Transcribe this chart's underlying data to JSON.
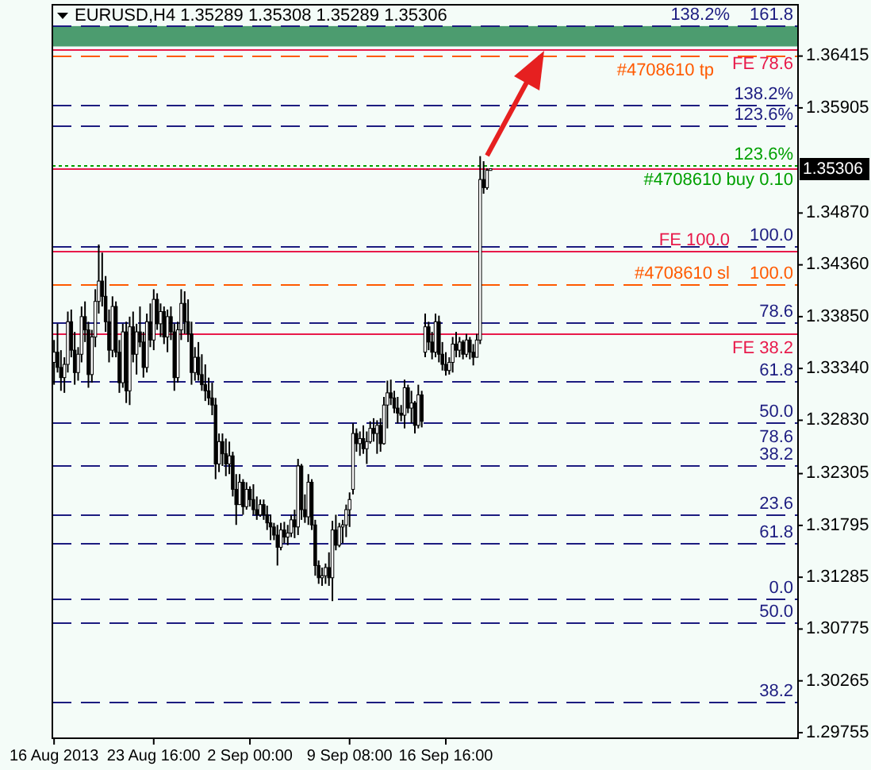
{
  "chart_data": {
    "type": "candlestick",
    "title": "EURUSD,H4  1.35289 1.35308 1.35289 1.35306",
    "categories": [
      "16 Aug 2013",
      null,
      null,
      null,
      null,
      null,
      null,
      null,
      null,
      null,
      null,
      null,
      null,
      null,
      null,
      null,
      null,
      null,
      null,
      null,
      null,
      null,
      null,
      null,
      null,
      null,
      null,
      null,
      null,
      "23 Aug 16:00",
      null,
      null,
      null,
      null,
      null,
      null,
      null,
      null,
      null,
      null,
      null,
      null,
      null,
      null,
      null,
      null,
      null,
      null,
      null,
      null,
      null,
      null,
      null,
      null,
      null,
      null,
      null,
      "2 Sep 00:00",
      null,
      null,
      null,
      null,
      null,
      null,
      null,
      null,
      null,
      null,
      null,
      null,
      null,
      null,
      null,
      null,
      null,
      null,
      null,
      null,
      null,
      null,
      null,
      null,
      null,
      null,
      null,
      null,
      "9 Sep 08:00",
      null,
      null,
      null,
      null,
      null,
      null,
      null,
      null,
      null,
      null,
      null,
      null,
      null,
      null,
      null,
      null,
      null,
      null,
      null,
      null,
      null,
      null,
      null,
      null,
      null,
      null,
      null,
      "16 Sep 16:00",
      null,
      null,
      null,
      null,
      null,
      null,
      null,
      null,
      null,
      null,
      null,
      null,
      null,
      null,
      null,
      null,
      null,
      null,
      null,
      null,
      null,
      null,
      null,
      null,
      null,
      null,
      null,
      null,
      null,
      null,
      null,
      null,
      null,
      null,
      null,
      null,
      null,
      null,
      null,
      null,
      null,
      null,
      null,
      null,
      null,
      null,
      null,
      null,
      null,
      null,
      null,
      null,
      null,
      null,
      null,
      null,
      null,
      null,
      null,
      null,
      null,
      null,
      null,
      null,
      null,
      null,
      null,
      null,
      null,
      null,
      null,
      null,
      null,
      null,
      null,
      null,
      null,
      null,
      null,
      null,
      null,
      null,
      null,
      null,
      null,
      null,
      null,
      null,
      null,
      null,
      null,
      null,
      null,
      null,
      null,
      null,
      null,
      null,
      null,
      null,
      null,
      null
    ],
    "ohlc": [
      [
        1.334,
        1.3362,
        1.3318,
        1.335
      ],
      [
        1.335,
        1.3378,
        1.333,
        1.3335
      ],
      [
        1.3335,
        1.3352,
        1.3312,
        1.3325
      ],
      [
        1.3325,
        1.3345,
        1.331,
        1.3338
      ],
      [
        1.3338,
        1.339,
        1.333,
        1.338
      ],
      [
        1.338,
        1.3392,
        1.3345,
        1.3352
      ],
      [
        1.3352,
        1.337,
        1.3318,
        1.333
      ],
      [
        1.333,
        1.3355,
        1.3322,
        1.3348
      ],
      [
        1.3348,
        1.3395,
        1.334,
        1.3385
      ],
      [
        1.3385,
        1.34,
        1.336,
        1.3372
      ],
      [
        1.3372,
        1.338,
        1.3315,
        1.3328
      ],
      [
        1.3328,
        1.3372,
        1.332,
        1.3365
      ],
      [
        1.3365,
        1.3412,
        1.3355,
        1.34
      ],
      [
        1.34,
        1.3456,
        1.3388,
        1.342
      ],
      [
        1.342,
        1.3448,
        1.3395,
        1.3405
      ],
      [
        1.3405,
        1.3425,
        1.337,
        1.338
      ],
      [
        1.338,
        1.3392,
        1.334,
        1.3352
      ],
      [
        1.3352,
        1.3405,
        1.3345,
        1.3395
      ],
      [
        1.3395,
        1.34,
        1.3345,
        1.335
      ],
      [
        1.335,
        1.3362,
        1.331,
        1.332
      ],
      [
        1.332,
        1.3378,
        1.3315,
        1.337
      ],
      [
        1.337,
        1.338,
        1.33,
        1.3312
      ],
      [
        1.3312,
        1.3385,
        1.3298,
        1.3375
      ],
      [
        1.3375,
        1.339,
        1.334,
        1.3348
      ],
      [
        1.3348,
        1.3378,
        1.3328,
        1.337
      ],
      [
        1.337,
        1.3395,
        1.3355,
        1.336
      ],
      [
        1.336,
        1.337,
        1.3325,
        1.3335
      ],
      [
        1.3335,
        1.3388,
        1.333,
        1.338
      ],
      [
        1.338,
        1.3398,
        1.3355,
        1.3362
      ],
      [
        1.3362,
        1.3412,
        1.3352,
        1.3402
      ],
      [
        1.3402,
        1.3408,
        1.3372,
        1.3378
      ],
      [
        1.3378,
        1.3398,
        1.3365,
        1.339
      ],
      [
        1.339,
        1.3395,
        1.3358,
        1.3365
      ],
      [
        1.3365,
        1.3392,
        1.335,
        1.3385
      ],
      [
        1.3385,
        1.3395,
        1.3362,
        1.337
      ],
      [
        1.337,
        1.3378,
        1.3312,
        1.3325
      ],
      [
        1.3325,
        1.338,
        1.332,
        1.3372
      ],
      [
        1.3372,
        1.3412,
        1.3362,
        1.3398
      ],
      [
        1.3398,
        1.341,
        1.3368,
        1.338
      ],
      [
        1.338,
        1.3402,
        1.336,
        1.3368
      ],
      [
        1.3368,
        1.338,
        1.3318,
        1.333
      ],
      [
        1.333,
        1.3355,
        1.3322,
        1.3345
      ],
      [
        1.3345,
        1.336,
        1.3322,
        1.3328
      ],
      [
        1.3328,
        1.3348,
        1.3312,
        1.3318
      ],
      [
        1.3318,
        1.3338,
        1.3302,
        1.3312
      ],
      [
        1.3312,
        1.3325,
        1.3298,
        1.3305
      ],
      [
        1.3305,
        1.332,
        1.3288,
        1.3298
      ],
      [
        1.3298,
        1.3305,
        1.3225,
        1.324
      ],
      [
        1.324,
        1.327,
        1.3232,
        1.3262
      ],
      [
        1.3262,
        1.327,
        1.3238,
        1.325
      ],
      [
        1.325,
        1.3265,
        1.3228,
        1.324
      ],
      [
        1.324,
        1.3262,
        1.323,
        1.3248
      ],
      [
        1.3248,
        1.3252,
        1.3208,
        1.3215
      ],
      [
        1.3215,
        1.323,
        1.318,
        1.32
      ],
      [
        1.32,
        1.323,
        1.32,
        1.3222
      ],
      [
        1.3222,
        1.3225,
        1.319,
        1.3198
      ],
      [
        1.3198,
        1.3222,
        1.3195,
        1.3215
      ],
      [
        1.3215,
        1.3218,
        1.3198,
        1.3205
      ],
      [
        1.3205,
        1.322,
        1.319,
        1.3195
      ],
      [
        1.3195,
        1.3208,
        1.3185,
        1.319
      ],
      [
        1.319,
        1.3205,
        1.3188,
        1.32
      ],
      [
        1.32,
        1.3205,
        1.3185,
        1.319
      ],
      [
        1.319,
        1.3199,
        1.3175,
        1.3182
      ],
      [
        1.3182,
        1.319,
        1.3165,
        1.3178
      ],
      [
        1.3178,
        1.3182,
        1.3165,
        1.317
      ],
      [
        1.317,
        1.318,
        1.314,
        1.3158
      ],
      [
        1.3158,
        1.3182,
        1.3155,
        1.3175
      ],
      [
        1.3175,
        1.3183,
        1.3162,
        1.3168
      ],
      [
        1.3168,
        1.318,
        1.316,
        1.3172
      ],
      [
        1.3172,
        1.319,
        1.3168,
        1.3185
      ],
      [
        1.3185,
        1.3195,
        1.3167,
        1.3178
      ],
      [
        1.3178,
        1.3245,
        1.317,
        1.3238
      ],
      [
        1.3238,
        1.324,
        1.3185,
        1.3195
      ],
      [
        1.3195,
        1.321,
        1.3182,
        1.3188
      ],
      [
        1.3188,
        1.323,
        1.318,
        1.3222
      ],
      [
        1.3222,
        1.3225,
        1.3175,
        1.318
      ],
      [
        1.318,
        1.3185,
        1.313,
        1.314
      ],
      [
        1.314,
        1.3145,
        1.3122,
        1.3128
      ],
      [
        1.3128,
        1.3138,
        1.312,
        1.313
      ],
      [
        1.313,
        1.3142,
        1.3122,
        1.3138
      ],
      [
        1.3138,
        1.3153,
        1.312,
        1.3128
      ],
      [
        1.3128,
        1.3184,
        1.3105,
        1.3175
      ],
      [
        1.3175,
        1.319,
        1.3155,
        1.316
      ],
      [
        1.316,
        1.3182,
        1.3158,
        1.3178
      ],
      [
        1.3178,
        1.3185,
        1.3162,
        1.318
      ],
      [
        1.318,
        1.32,
        1.3168,
        1.3195
      ],
      [
        1.3195,
        1.3212,
        1.3178,
        1.3205
      ],
      [
        1.3215,
        1.328,
        1.321,
        1.327
      ],
      [
        1.327,
        1.3275,
        1.3252,
        1.326
      ],
      [
        1.326,
        1.3272,
        1.3248,
        1.3265
      ],
      [
        1.3265,
        1.3278,
        1.325,
        1.3255
      ],
      [
        1.3255,
        1.3272,
        1.324,
        1.3262
      ],
      [
        1.3262,
        1.3282,
        1.326,
        1.3275
      ],
      [
        1.3275,
        1.3285,
        1.3262,
        1.327
      ],
      [
        1.327,
        1.3283,
        1.325,
        1.3278
      ],
      [
        1.3278,
        1.3285,
        1.3252,
        1.326
      ],
      [
        1.326,
        1.3306,
        1.3259,
        1.3298
      ],
      [
        1.3298,
        1.3322,
        1.3275,
        1.331
      ],
      [
        1.331,
        1.3323,
        1.3298,
        1.3305
      ],
      [
        1.3305,
        1.3312,
        1.329,
        1.3295
      ],
      [
        1.3295,
        1.3306,
        1.328,
        1.329
      ],
      [
        1.329,
        1.3298,
        1.3282,
        1.3288
      ],
      [
        1.3288,
        1.3323,
        1.3275,
        1.3315
      ],
      [
        1.3315,
        1.3318,
        1.329,
        1.3295
      ],
      [
        1.3295,
        1.3312,
        1.328,
        1.33
      ],
      [
        1.33,
        1.3302,
        1.327,
        1.3278
      ],
      [
        1.3278,
        1.3318,
        1.3275,
        1.3308
      ],
      [
        1.3308,
        1.3312,
        1.3276,
        1.3282
      ],
      [
        1.335,
        1.3388,
        1.3345,
        1.3375
      ],
      [
        1.3375,
        1.338,
        1.3352,
        1.336
      ],
      [
        1.336,
        1.337,
        1.3343,
        1.335
      ],
      [
        1.335,
        1.3388,
        1.3345,
        1.338
      ],
      [
        1.338,
        1.3386,
        1.334,
        1.3348
      ],
      [
        1.3348,
        1.336,
        1.3332,
        1.3338
      ],
      [
        1.3338,
        1.335,
        1.3327,
        1.3332
      ],
      [
        1.3332,
        1.3345,
        1.3328,
        1.334
      ],
      [
        1.334,
        1.3365,
        1.333,
        1.3358
      ],
      [
        1.3358,
        1.337,
        1.3345,
        1.3352
      ],
      [
        1.3352,
        1.3365,
        1.3345,
        1.336
      ],
      [
        1.336,
        1.3362,
        1.3343,
        1.3348
      ],
      [
        1.3348,
        1.3368,
        1.3345,
        1.3362
      ],
      [
        1.3362,
        1.3365,
        1.3343,
        1.335
      ],
      [
        1.335,
        1.3358,
        1.3337,
        1.3345
      ],
      [
        1.3345,
        1.3368,
        1.3345,
        1.3362
      ],
      [
        1.3362,
        1.3543,
        1.3358,
        1.352
      ],
      [
        1.352,
        1.3538,
        1.3506,
        1.3512
      ],
      [
        1.3512,
        1.3531,
        1.351,
        1.3529
      ],
      [
        1.35289,
        1.35308,
        1.35289,
        1.35306
      ],
      null,
      null,
      null,
      null,
      null,
      null,
      null,
      null,
      null,
      null,
      null,
      null,
      null,
      null,
      null,
      null,
      null,
      null,
      null,
      null,
      null,
      null,
      null,
      null,
      null,
      null,
      null,
      null,
      null,
      null,
      null,
      null,
      null,
      null,
      null,
      null,
      null,
      null,
      null,
      null,
      null,
      null,
      null,
      null,
      null,
      null,
      null,
      null,
      null,
      null,
      null,
      null,
      null,
      null,
      null,
      null,
      null,
      null,
      null,
      null,
      null,
      null,
      null,
      null,
      null,
      null,
      null,
      null,
      null,
      null,
      null,
      null,
      null,
      null,
      null,
      null,
      null,
      null,
      null,
      null,
      null,
      null,
      null,
      null,
      null,
      null,
      null,
      null,
      null
    ],
    "ylim": [
      1.297,
      1.3692
    ],
    "yticks": [
      1.29755,
      1.30265,
      1.30775,
      1.31285,
      1.31795,
      1.32305,
      {
        "value": 1.3283,
        "label": "1.32830"
      },
      {
        "value": 1.3334,
        "label": "1.33340"
      },
      {
        "value": 1.3385,
        "label": "1.33850"
      },
      {
        "value": 1.3436,
        "label": "1.34360"
      },
      {
        "value": 1.3487,
        "label": "1.34870"
      },
      1.35905,
      1.36415
    ],
    "bands": [
      {
        "axis": "y",
        "from": 1.3651,
        "to": 1.3671,
        "color": "#2e8b57"
      }
    ],
    "ref_lines": [
      {
        "axis": "y",
        "value": 1.3671,
        "color": "#1c1c80",
        "line_style": "dashed"
      },
      {
        "axis": "y",
        "value": 1.3593,
        "color": "#1c1c80",
        "line_style": "dashed"
      },
      {
        "axis": "y",
        "value": 1.3573,
        "color": "#1c1c80",
        "line_style": "dashed"
      },
      {
        "axis": "y",
        "value": 1.3455,
        "color": "#1c1c80",
        "line_style": "dashed"
      },
      {
        "axis": "y",
        "value": 1.338,
        "color": "#1c1c80",
        "line_style": "dashed"
      },
      {
        "axis": "y",
        "value": 1.3322,
        "color": "#1c1c80",
        "line_style": "dashed"
      },
      {
        "axis": "y",
        "value": 1.3281,
        "color": "#1c1c80",
        "line_style": "dashed"
      },
      {
        "axis": "y",
        "value": 1.3239,
        "color": "#1c1c80",
        "line_style": "dashed"
      },
      {
        "axis": "y",
        "value": 1.319,
        "color": "#1c1c80",
        "line_style": "dashed"
      },
      {
        "axis": "y",
        "value": 1.3163,
        "color": "#1c1c80",
        "line_style": "dashed"
      },
      {
        "axis": "y",
        "value": 1.3108,
        "color": "#1c1c80",
        "line_style": "dashed"
      },
      {
        "axis": "y",
        "value": 1.3084,
        "color": "#1c1c80",
        "line_style": "dashed"
      },
      {
        "axis": "y",
        "value": 1.3006,
        "color": "#1c1c80",
        "line_style": "dashed"
      },
      {
        "axis": "y",
        "value": 1.3649,
        "color": "#e8194a",
        "line_style": "solid"
      },
      {
        "axis": "y",
        "value": 1.35306,
        "label": "1.35306",
        "color": "#e8194a",
        "line_style": "solid"
      },
      {
        "axis": "y",
        "value": 1.345,
        "color": "#e8194a",
        "line_style": "solid"
      },
      {
        "axis": "y",
        "value": 1.3368,
        "color": "#e8194a",
        "line_style": "solid"
      },
      {
        "axis": "y",
        "value": 1.3642,
        "color": "#ff5a00",
        "line_style": "dashed"
      },
      {
        "axis": "y",
        "value": 1.3417,
        "color": "#ff5a00",
        "line_style": "dashed"
      },
      {
        "axis": "y",
        "value": 1.3534,
        "color": "#00a000",
        "line_style": "dotted"
      }
    ],
    "annotations": [
      {
        "text": "161.8",
        "y": 1.3671
      },
      {
        "text": "138.2%",
        "y": 1.3671
      },
      {
        "text": "138.2%",
        "y": 1.3593
      },
      {
        "text": "123.6%",
        "y": 1.3573
      },
      {
        "text": "123.6%",
        "y": 1.3534
      },
      {
        "text": "100.0",
        "y": 1.3455
      },
      {
        "text": "100.0",
        "y": 1.3417
      },
      {
        "text": "78.6",
        "y": 1.338
      },
      {
        "text": "61.8",
        "y": 1.3322
      },
      {
        "text": "50.0",
        "y": 1.3281
      },
      {
        "text": "78.6",
        "y": 1.3281
      },
      {
        "text": "38.2",
        "y": 1.3239
      },
      {
        "text": "23.6",
        "y": 1.319
      },
      {
        "text": "61.8",
        "y": 1.3163
      },
      {
        "text": "0.0",
        "y": 1.3108
      },
      {
        "text": "50.0",
        "y": 1.3084
      },
      {
        "text": "38.2",
        "y": 1.3006
      },
      {
        "text": "FE 78.6",
        "y": 1.3649
      },
      {
        "text": "FE 100.0",
        "y": 1.345
      },
      {
        "text": "FE 38.2",
        "y": 1.3368
      },
      {
        "text": "#4708610 tp",
        "y": 1.3642
      },
      {
        "text": "#4708610 sl",
        "y": 1.3417
      },
      {
        "text": "#4708610 buy 0.10",
        "y": 1.3534
      }
    ]
  }
}
